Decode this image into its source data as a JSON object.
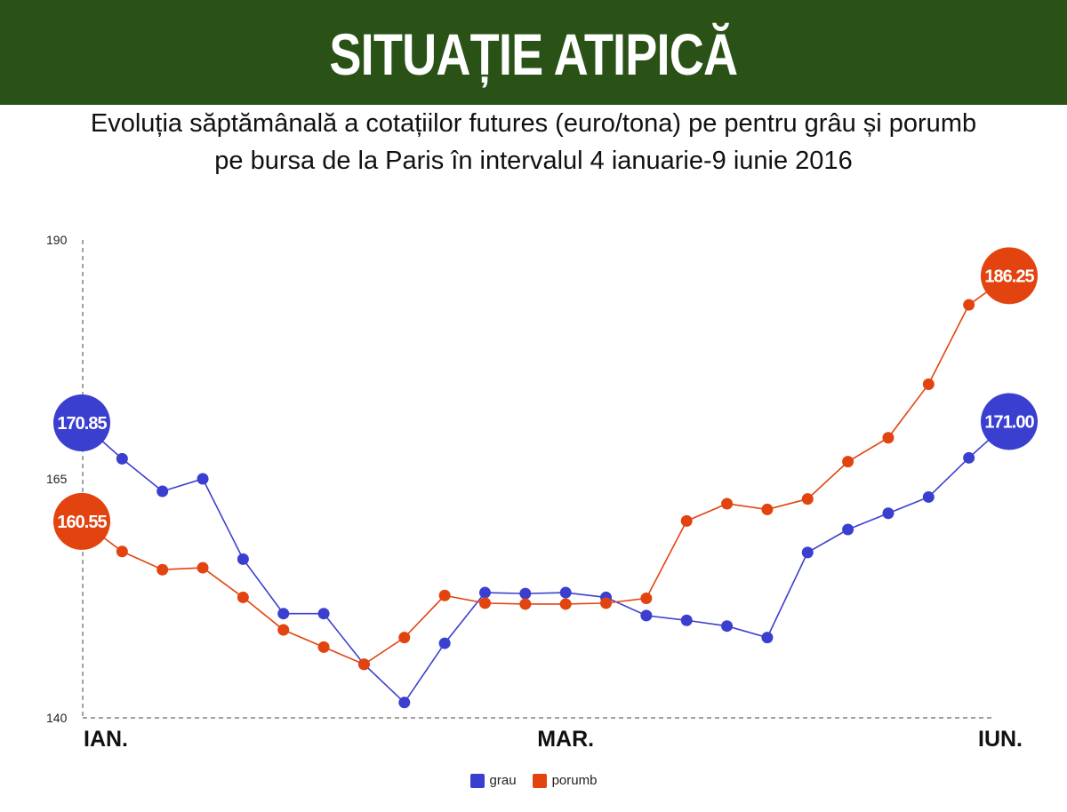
{
  "header": {
    "title": "SITUAȚIE ATIPICĂ"
  },
  "subtitle": {
    "line1": "Evoluția săptămânală a cotațiilor futures (euro/tona) pe pentru grâu și porumb",
    "line2": "pe bursa de la Paris în intervalul 4 ianuarie-9 iunie 2016"
  },
  "colors": {
    "banner": "#2a5216",
    "grau": "#3b3fcf",
    "porumb": "#e2430f"
  },
  "chart_data": {
    "type": "line",
    "title": "",
    "xlabel": "",
    "ylabel": "",
    "ylim": [
      140,
      190
    ],
    "yticks": [
      "190",
      "165",
      "140"
    ],
    "x_labels": [
      {
        "label": "IAN.",
        "index": 0
      },
      {
        "label": "MAR.",
        "index": 12
      },
      {
        "label": "IUN.",
        "index": 23
      }
    ],
    "grid": false,
    "legend_position": "bottom",
    "series": [
      {
        "name": "grau",
        "color": "#3b3fcf",
        "values": [
          170.85,
          167.1,
          163.7,
          165.0,
          156.6,
          150.9,
          150.9,
          145.6,
          141.6,
          147.8,
          153.1,
          153.0,
          153.1,
          152.6,
          150.7,
          150.2,
          149.6,
          148.4,
          157.3,
          159.7,
          161.4,
          163.1,
          167.2,
          171.0
        ],
        "start_label": "170.85",
        "end_label": "171.00"
      },
      {
        "name": "porumb",
        "color": "#e2430f",
        "values": [
          160.55,
          157.4,
          155.5,
          155.7,
          152.6,
          149.2,
          147.4,
          145.6,
          148.4,
          152.8,
          152.0,
          151.9,
          151.9,
          152.0,
          152.5,
          160.6,
          162.4,
          161.8,
          162.9,
          166.8,
          169.3,
          174.9,
          183.2,
          186.25
        ],
        "start_label": "160.55",
        "end_label": "186.25"
      }
    ]
  }
}
